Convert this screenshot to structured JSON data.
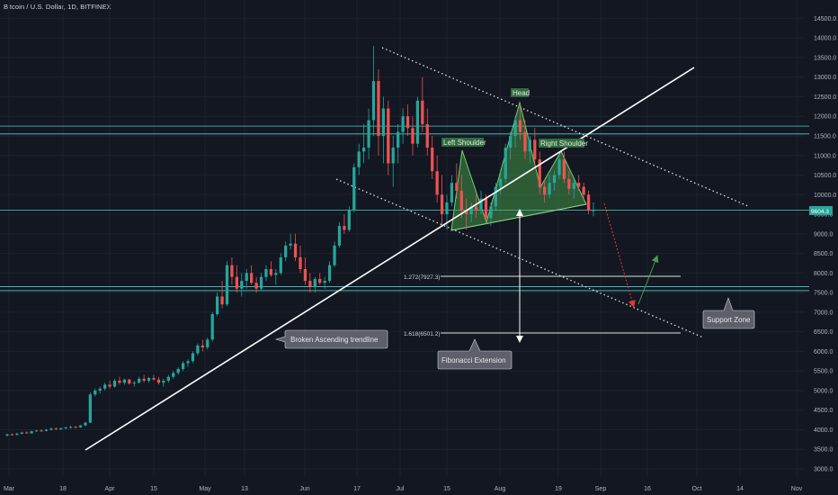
{
  "header": {
    "symbol_line": "Bitcoin / U.S. Dollar, 1D, BITFINEX"
  },
  "chart_data": {
    "type": "candlestick",
    "title": "Bitcoin / U.S. Dollar, 1D, BITFINEX",
    "ylim": [
      2900,
      15000
    ],
    "y_ticks": [
      "3000.0",
      "3500.0",
      "4000.0",
      "4500.0",
      "5000.0",
      "5500.0",
      "6000.0",
      "6500.0",
      "7000.0",
      "7500.0",
      "8000.0",
      "8500.0",
      "9000.0",
      "9500.0",
      "10000.0",
      "10500.0",
      "11000.0",
      "11500.0",
      "12000.0",
      "12500.0",
      "13000.0",
      "13500.0",
      "14000.0",
      "14500.0"
    ],
    "x_ticks": [
      "Mar",
      "18",
      "Apr",
      "15",
      "May",
      "13",
      "Jun",
      "17",
      "Jul",
      "15",
      "Aug",
      "19",
      "Sep",
      "16",
      "Oct",
      "14",
      "Nov"
    ],
    "last_price": "9604.3",
    "candle_colors": {
      "up": "#26a69a",
      "down": "#ef5350"
    },
    "candles": [
      [
        3850,
        3900,
        3830,
        3880
      ],
      [
        3880,
        3910,
        3860,
        3870
      ],
      [
        3870,
        3920,
        3850,
        3900
      ],
      [
        3900,
        3950,
        3880,
        3930
      ],
      [
        3930,
        3960,
        3900,
        3910
      ],
      [
        3910,
        3980,
        3890,
        3960
      ],
      [
        3960,
        4000,
        3940,
        3980
      ],
      [
        3980,
        4010,
        3950,
        3970
      ],
      [
        3970,
        4020,
        3950,
        4000
      ],
      [
        4000,
        4050,
        3980,
        4030
      ],
      [
        4030,
        4060,
        4000,
        4010
      ],
      [
        4010,
        4050,
        3990,
        4040
      ],
      [
        4040,
        4080,
        4010,
        4060
      ],
      [
        4060,
        4100,
        4030,
        4070
      ],
      [
        4070,
        4100,
        4040,
        4060
      ],
      [
        4060,
        4120,
        4050,
        4110
      ],
      [
        4110,
        4200,
        4090,
        4180
      ],
      [
        4180,
        4950,
        4170,
        4900
      ],
      [
        4900,
        5050,
        4850,
        5000
      ],
      [
        5000,
        5100,
        4920,
        5050
      ],
      [
        5050,
        5200,
        5000,
        5150
      ],
      [
        5150,
        5250,
        5050,
        5100
      ],
      [
        5100,
        5300,
        5080,
        5250
      ],
      [
        5250,
        5350,
        5150,
        5200
      ],
      [
        5200,
        5300,
        5150,
        5280
      ],
      [
        5280,
        5300,
        5150,
        5180
      ],
      [
        5180,
        5250,
        5100,
        5200
      ],
      [
        5200,
        5350,
        5180,
        5300
      ],
      [
        5300,
        5400,
        5200,
        5250
      ],
      [
        5250,
        5350,
        5200,
        5320
      ],
      [
        5320,
        5400,
        5250,
        5280
      ],
      [
        5280,
        5350,
        5150,
        5200
      ],
      [
        5200,
        5300,
        5100,
        5250
      ],
      [
        5250,
        5400,
        5200,
        5350
      ],
      [
        5350,
        5500,
        5300,
        5450
      ],
      [
        5450,
        5600,
        5400,
        5550
      ],
      [
        5550,
        5750,
        5500,
        5700
      ],
      [
        5700,
        5800,
        5600,
        5750
      ],
      [
        5750,
        6000,
        5700,
        5950
      ],
      [
        5950,
        6200,
        5900,
        6150
      ],
      [
        6150,
        6300,
        6000,
        6100
      ],
      [
        6100,
        6350,
        6050,
        6300
      ],
      [
        6300,
        7000,
        6250,
        6950
      ],
      [
        6950,
        7500,
        6900,
        7400
      ],
      [
        7400,
        7800,
        7100,
        7200
      ],
      [
        7200,
        8300,
        7150,
        8200
      ],
      [
        8200,
        8400,
        7700,
        7900
      ],
      [
        7900,
        8200,
        7500,
        7600
      ],
      [
        7600,
        8000,
        7400,
        7800
      ],
      [
        7800,
        8100,
        7600,
        8000
      ],
      [
        8000,
        8200,
        7700,
        7750
      ],
      [
        7750,
        7900,
        7500,
        7600
      ],
      [
        7600,
        8000,
        7550,
        7900
      ],
      [
        7900,
        8200,
        7800,
        8100
      ],
      [
        8100,
        8300,
        7900,
        7950
      ],
      [
        7950,
        8100,
        7700,
        8000
      ],
      [
        8000,
        8500,
        7950,
        8400
      ],
      [
        8400,
        8800,
        8300,
        8700
      ],
      [
        8700,
        9000,
        8600,
        8750
      ],
      [
        8750,
        9000,
        8300,
        8400
      ],
      [
        8400,
        8700,
        8000,
        8100
      ],
      [
        8100,
        8400,
        7700,
        7800
      ],
      [
        7800,
        8000,
        7500,
        7650
      ],
      [
        7650,
        7900,
        7500,
        7850
      ],
      [
        7850,
        8000,
        7700,
        7750
      ],
      [
        7750,
        7900,
        7600,
        7800
      ],
      [
        7800,
        8300,
        7750,
        8200
      ],
      [
        8200,
        8800,
        8150,
        8700
      ],
      [
        8700,
        9300,
        8650,
        9200
      ],
      [
        9200,
        9500,
        9000,
        9100
      ],
      [
        9100,
        9700,
        9050,
        9600
      ],
      [
        9600,
        10800,
        9550,
        10700
      ],
      [
        10700,
        11300,
        10500,
        11100
      ],
      [
        11100,
        11800,
        10800,
        11200
      ],
      [
        11200,
        12200,
        10900,
        11900
      ],
      [
        11900,
        13800,
        11500,
        12900
      ],
      [
        12900,
        13200,
        11000,
        11500
      ],
      [
        11500,
        12500,
        10800,
        12200
      ],
      [
        12200,
        12400,
        10500,
        10800
      ],
      [
        10800,
        11500,
        10200,
        11200
      ],
      [
        11200,
        11800,
        10800,
        11600
      ],
      [
        11600,
        12200,
        11300,
        12000
      ],
      [
        12000,
        12300,
        11500,
        11700
      ],
      [
        11700,
        12000,
        11000,
        11300
      ],
      [
        11300,
        12500,
        11200,
        12400
      ],
      [
        12400,
        13000,
        11600,
        11800
      ],
      [
        11800,
        12200,
        11000,
        11200
      ],
      [
        11200,
        11500,
        10400,
        10600
      ],
      [
        10600,
        11000,
        9800,
        10000
      ],
      [
        10000,
        10500,
        9200,
        9500
      ],
      [
        9500,
        10000,
        9100,
        9800
      ],
      [
        9800,
        10500,
        9700,
        10300
      ],
      [
        10300,
        10800,
        9900,
        10100
      ],
      [
        10100,
        10500,
        9400,
        9600
      ],
      [
        9600,
        9900,
        9100,
        9500
      ],
      [
        9500,
        9800,
        9300,
        9700
      ],
      [
        9700,
        10000,
        9400,
        9600
      ],
      [
        9600,
        10100,
        9500,
        9900
      ],
      [
        9900,
        10000,
        9300,
        9400
      ],
      [
        9400,
        9800,
        9200,
        9700
      ],
      [
        9700,
        10300,
        9600,
        10200
      ],
      [
        10200,
        10600,
        10000,
        10400
      ],
      [
        10400,
        11300,
        10300,
        11200
      ],
      [
        11200,
        11600,
        10900,
        11500
      ],
      [
        11500,
        12000,
        11200,
        11900
      ],
      [
        11900,
        12300,
        11400,
        11600
      ],
      [
        11600,
        11900,
        10900,
        11100
      ],
      [
        11100,
        11500,
        10800,
        11400
      ],
      [
        11400,
        11700,
        10700,
        10900
      ],
      [
        10900,
        11100,
        10000,
        10200
      ],
      [
        10200,
        10400,
        9800,
        10000
      ],
      [
        10000,
        10500,
        9900,
        10300
      ],
      [
        10300,
        10600,
        10100,
        10500
      ],
      [
        10500,
        11000,
        10400,
        10900
      ],
      [
        10900,
        11100,
        10300,
        10400
      ],
      [
        10400,
        10600,
        10000,
        10150
      ],
      [
        10150,
        10400,
        9900,
        10300
      ],
      [
        10300,
        10500,
        10100,
        10200
      ],
      [
        10200,
        10300,
        9900,
        10000
      ],
      [
        10000,
        10100,
        9500,
        9600
      ],
      [
        9600,
        9800,
        9450,
        9604
      ]
    ],
    "horizontal_levels": [
      11750,
      11550,
      9604,
      7650,
      7550
    ],
    "annotations": {
      "head": "Head",
      "left_shoulder": "Left Shoulder",
      "right_shoulder": "Right Shoulder",
      "broken_trendline": "Broken Ascending trendline",
      "fib_extension": "Fibonacci Extension",
      "support_zone": "Support Zone",
      "fib_1272": "1.272(7927.3)",
      "fib_1618": "1.618(6501.2)"
    },
    "colors": {
      "background": "#131722",
      "pattern_fill": "#4caf50",
      "level_line": "#4dd0c8",
      "projection_down": "#e53935",
      "projection_up": "#43a047"
    }
  }
}
